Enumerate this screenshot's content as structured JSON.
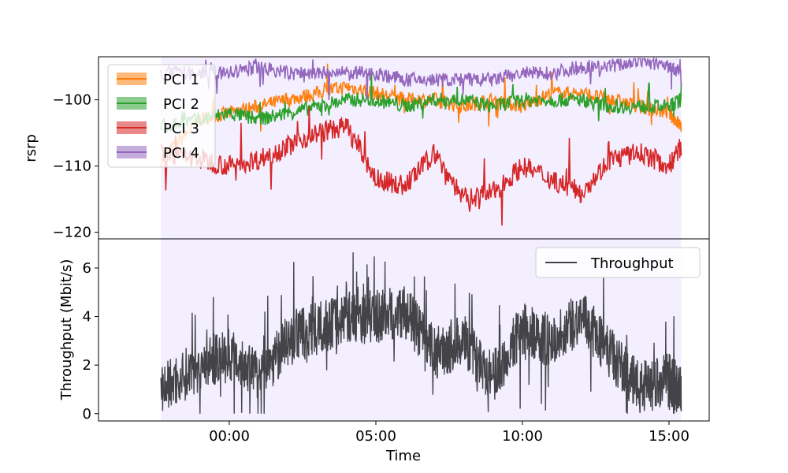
{
  "chart_data": [
    {
      "type": "line",
      "panel": "top",
      "ylabel": "rsrp",
      "ylim": [
        -121,
        -93.5
      ],
      "yticks": [
        -120,
        -110,
        -100
      ],
      "ytick_labels": [
        "−120",
        "−110",
        "−100"
      ],
      "shaded_region": {
        "from": "21:40",
        "to": "15:25",
        "color": "#f3efff"
      },
      "legend": {
        "placement": "top-left"
      },
      "x": [
        "21:40",
        "23:00",
        "00:00",
        "01:00",
        "02:00",
        "03:00",
        "04:00",
        "05:00",
        "06:00",
        "07:00",
        "08:00",
        "09:00",
        "10:00",
        "11:00",
        "12:00",
        "13:00",
        "14:00",
        "15:00",
        "15:25"
      ],
      "series": [
        {
          "name": "PCI 1",
          "color": "#ff7f0e",
          "values": [
            -109,
            -103,
            -102,
            -101,
            -100,
            -99,
            -98,
            -99,
            -100,
            -100,
            -101,
            -100,
            -101,
            -99,
            -99,
            -100,
            -101,
            -102,
            -104
          ]
        },
        {
          "name": "PCI 2",
          "color": "#2ca02c",
          "values": [
            -104,
            -103,
            -102,
            -103,
            -102,
            -101,
            -100,
            -100,
            -101,
            -100,
            -100,
            -101,
            -100,
            -100,
            -100,
            -101,
            -101,
            -101,
            -100
          ]
        },
        {
          "name": "PCI 3",
          "color": "#d62728",
          "values": [
            -108,
            -109,
            -110,
            -109,
            -107,
            -105,
            -104,
            -112,
            -113,
            -108,
            -115,
            -114,
            -110,
            -112,
            -114,
            -109,
            -108,
            -110,
            -107
          ]
        },
        {
          "name": "PCI 4",
          "color": "#9467bd",
          "values": [
            -96,
            -96,
            -96,
            -95,
            -96,
            -96,
            -96,
            -96,
            -97,
            -97,
            -97,
            -97,
            -96,
            -96,
            -95,
            -95,
            -94,
            -95,
            -96
          ]
        }
      ]
    },
    {
      "type": "line",
      "panel": "bottom",
      "ylabel": "Throughput (Mbit/s)",
      "xlabel": "Time",
      "ylim": [
        -0.3,
        7.2
      ],
      "yticks": [
        0,
        2,
        4,
        6
      ],
      "ytick_labels": [
        "0",
        "2",
        "4",
        "6"
      ],
      "xticks": [
        "00:00",
        "05:00",
        "10:00",
        "15:00"
      ],
      "shaded_region": {
        "from": "21:40",
        "to": "15:25",
        "color": "#f3efff"
      },
      "legend": {
        "placement": "top-right"
      },
      "x": [
        "21:40",
        "23:00",
        "00:00",
        "01:00",
        "02:00",
        "03:00",
        "04:00",
        "05:00",
        "06:00",
        "07:00",
        "08:00",
        "09:00",
        "10:00",
        "11:00",
        "12:00",
        "13:00",
        "14:00",
        "15:00",
        "15:25"
      ],
      "series": [
        {
          "name": "Throughput",
          "color": "#444448",
          "values": [
            1.0,
            2.0,
            2.5,
            1.5,
            3.0,
            3.5,
            4.0,
            4.0,
            4.2,
            2.5,
            3.0,
            1.5,
            3.5,
            3.0,
            4.0,
            2.5,
            1.0,
            1.5,
            0.8
          ]
        }
      ]
    }
  ]
}
